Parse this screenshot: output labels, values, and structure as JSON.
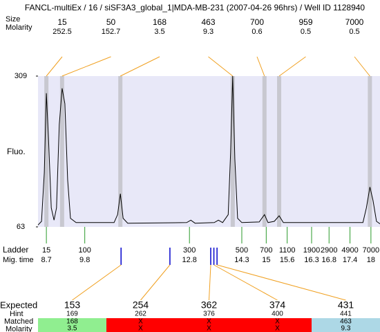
{
  "title": "FANCL-multiEx / 16 / siSF3A3_global_1|MDA-MB-231 (2007-04-26 96hrs) / Well ID 1128940",
  "peak_labels": [
    "Size",
    "Molarity"
  ],
  "peaks": [
    {
      "size": 15,
      "molarity": 252.5,
      "time": 8.7
    },
    {
      "size": 50,
      "molarity": 152.7,
      "time": 9.15
    },
    {
      "size": 168,
      "molarity": 3.5,
      "time": 10.82
    },
    {
      "size": 463,
      "molarity": 9.3,
      "time": 14.04
    },
    {
      "size": 700,
      "molarity": 0.6,
      "time": 14.95
    },
    {
      "size": 959,
      "molarity": 0.5,
      "time": 15.37
    },
    {
      "size": 7000,
      "molarity": 0.5,
      "time": 17.97
    }
  ],
  "y_axis_label": "Fluo.",
  "ylim": [
    63,
    309
  ],
  "yticks": [
    309,
    63
  ],
  "xlim": [
    8.46,
    18.26
  ],
  "trace": {
    "x": [
      8.46,
      8.56,
      8.64,
      8.7,
      8.76,
      8.84,
      8.92,
      8.99,
      9.07,
      9.15,
      9.23,
      9.31,
      9.39,
      9.55,
      10.64,
      10.74,
      10.82,
      10.9,
      11.03,
      12.72,
      12.84,
      12.96,
      13.51,
      13.63,
      13.75,
      13.91,
      13.98,
      14.04,
      14.1,
      14.18,
      14.3,
      14.8,
      14.95,
      15.05,
      15.23,
      15.37,
      15.49,
      17.77,
      17.87,
      17.97,
      18.06,
      18.16,
      18.26
    ],
    "values": [
      66,
      72,
      151,
      281,
      207,
      94,
      74,
      94,
      230,
      289,
      264,
      140,
      77,
      70,
      70,
      83,
      117,
      77,
      69,
      70,
      74,
      69,
      70,
      74,
      70,
      83,
      185,
      309,
      174,
      77,
      70,
      71,
      83,
      70,
      72,
      81,
      70,
      70,
      94,
      128,
      106,
      72,
      68
    ]
  },
  "ladder": {
    "label": "Ladder",
    "sublabel": "Mig. time",
    "sizes": [
      15,
      100,
      300,
      500,
      700,
      1100,
      1900,
      2900,
      4900,
      7000
    ],
    "times": [
      8.7,
      9.8,
      12.8,
      14.3,
      15,
      15.6,
      16.3,
      16.8,
      17.4,
      18
    ]
  },
  "expected": {
    "label": "Expected",
    "hint_label": "Hint",
    "matched_label": "Matched",
    "molarity_label": "Molarity",
    "items": [
      {
        "expected": 153,
        "hint": 169,
        "matched": 168,
        "molarity": 3.5,
        "time": 10.84,
        "expected_color": "#ff0000",
        "cell_color": "#90ee90"
      },
      {
        "expected": 254,
        "hint": 262,
        "matched": "X",
        "molarity": "X",
        "time": 12.24,
        "expected_color": "#000000",
        "cell_color": "#ff0000"
      },
      {
        "expected": 362,
        "hint": 376,
        "matched": "X",
        "molarity": "X",
        "time": 13.41,
        "expected_color": "#000000",
        "cell_color": "#ff0000"
      },
      {
        "expected": 374,
        "hint": 400,
        "matched": "X",
        "molarity": "X",
        "time": 13.5,
        "expected_color": "#000000",
        "cell_color": "#ff0000"
      },
      {
        "expected": 431,
        "hint": 441,
        "matched": 463,
        "molarity": 9.3,
        "time": 13.59,
        "expected_color": "#ff0000",
        "cell_color": "#add8e6"
      }
    ]
  }
}
